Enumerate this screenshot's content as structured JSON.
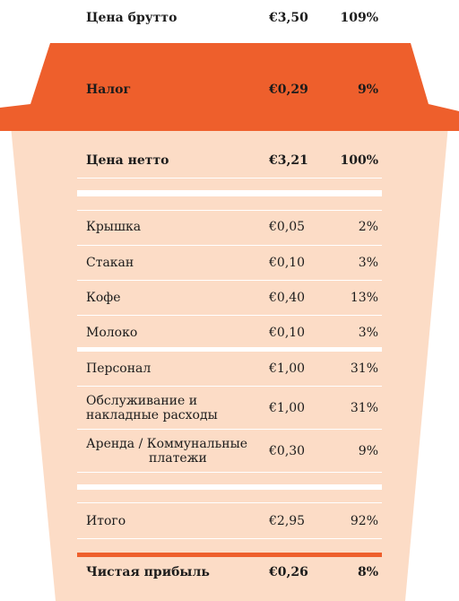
{
  "colors": {
    "lid": "#ee5f2c",
    "cup": "#fcdcc6",
    "background": "#ffffff",
    "accent_rule": "#ee5f2c"
  },
  "rows": [
    {
      "label": "Цена брутто",
      "price": "€3,50",
      "percent": "109%"
    },
    {
      "label": "Налог",
      "price": "€0,29",
      "percent": "9%"
    },
    {
      "label": "Цена нетто",
      "price": "€3,21",
      "percent": "100%"
    },
    {
      "label": "Крышка",
      "price": "€0,05",
      "percent": "2%"
    },
    {
      "label": "Стакан",
      "price": "€0,10",
      "percent": "3%"
    },
    {
      "label": "Кофе",
      "price": "€0,40",
      "percent": "13%"
    },
    {
      "label": "Молоко",
      "price": "€0,10",
      "percent": "3%"
    },
    {
      "label": "Персонал",
      "price": "€1,00",
      "percent": "31%"
    },
    {
      "label_line1": "Обслуживание и",
      "label_line2": "накладные расходы",
      "price": "€1,00",
      "percent": "31%"
    },
    {
      "label_line1": "Аренда / Коммунальные",
      "label_line2": "платежи",
      "price": "€0,30",
      "percent": "9%"
    },
    {
      "label": "Итого",
      "price": "€2,95",
      "percent": "92%"
    },
    {
      "label": "Чистая прибыль",
      "price": "€0,26",
      "percent": "8%"
    }
  ]
}
